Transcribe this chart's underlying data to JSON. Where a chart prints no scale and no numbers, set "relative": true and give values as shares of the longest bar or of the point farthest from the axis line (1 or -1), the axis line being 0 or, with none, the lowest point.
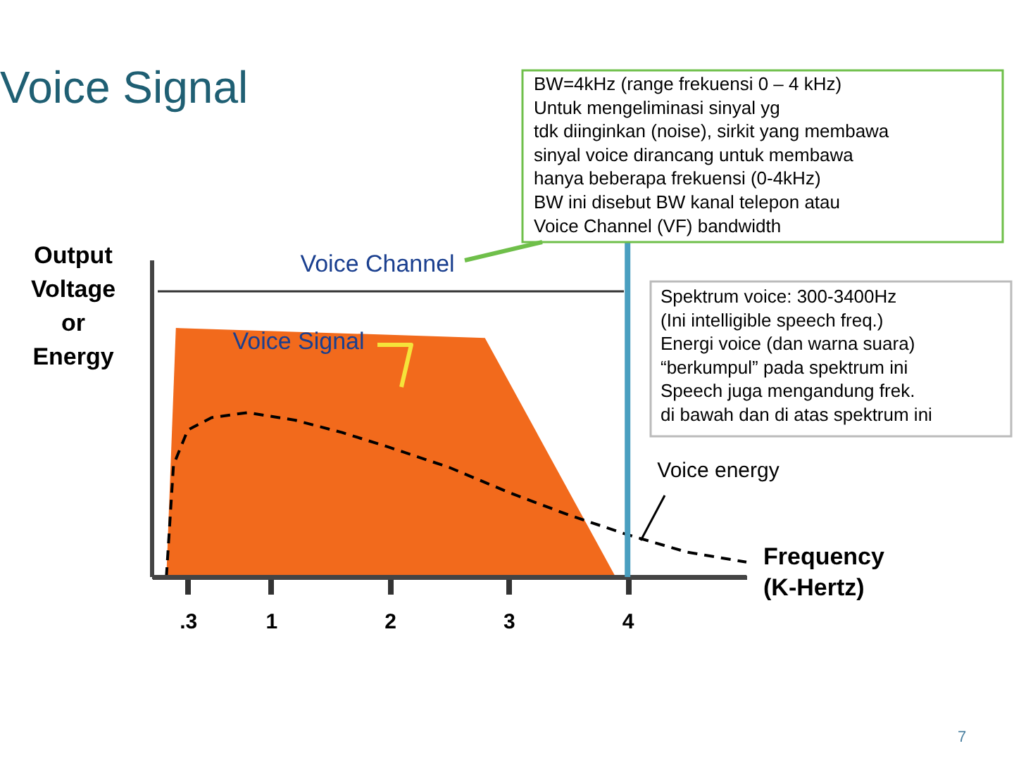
{
  "chart_data": {
    "type": "area",
    "title": "Voice Signal",
    "relative": true,
    "ylabel": "Output\nVoltage\nor\nEnergy",
    "xlabel": "Frequency\n(K-Hertz)",
    "xlim": [
      0,
      5
    ],
    "xticks": [
      {
        "value": 0.3,
        "label": ".3"
      },
      1,
      2,
      3,
      4
    ],
    "series": [
      {
        "name": "Voice Signal",
        "type": "area",
        "color": "#f26a1c",
        "x": [
          0.12,
          0.2,
          2.8,
          3.9
        ],
        "values": [
          0,
          1,
          0.96,
          0
        ]
      },
      {
        "name": "Voice energy",
        "type": "line",
        "line_style": "dashed",
        "color": "#000000",
        "x": [
          0.12,
          0.18,
          0.3,
          0.5,
          0.8,
          1.2,
          1.6,
          2.0,
          2.5,
          3.0,
          3.5,
          4.0,
          4.5,
          5.0
        ],
        "values": [
          0,
          0.45,
          0.59,
          0.64,
          0.66,
          0.63,
          0.58,
          0.52,
          0.44,
          0.34,
          0.25,
          0.17,
          0.1,
          0.06
        ]
      }
    ],
    "ref_lines": [
      {
        "axis": "x",
        "value": 4,
        "color": "#4a9fc0"
      }
    ],
    "annotations": [
      "BW=4kHz (range frekuensi 0 – 4 kHz)\nUntuk mengeliminasi sinyal yg\ntdk diinginkan (noise), sirkit yang membawa\nsinyal voice dirancang untuk membawa\nhanya beberapa frekuensi (0-4kHz)\nBW ini disebut BW kanal telepon atau\nVoice Channel (VF) bandwidth",
      "Voice Channel",
      "Spektrum voice: 300-3400Hz\n(Ini intelligible speech freq.)\nEnergi voice (dan warna suara)\n“berkumpul” pada spektrum ini\nSpeech juga mengandung frek.\ndi bawah dan di atas spektrum ini",
      "7"
    ],
    "grid": false
  }
}
